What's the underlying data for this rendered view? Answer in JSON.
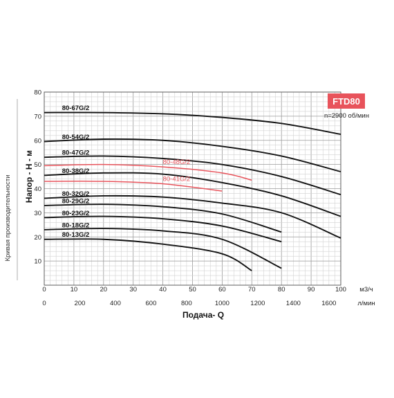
{
  "chart_data": {
    "type": "line",
    "model_label": "FTD80",
    "speed_note": "n=2900 об/мин",
    "side_label": "Кривая производительности",
    "ylabel": "Напор - Н - м",
    "xlabel": "Подача- Q",
    "x_unit_top": "м3/ч",
    "x_unit_bottom": "л/мин",
    "xlim": [
      0,
      100
    ],
    "ylim": [
      0,
      80
    ],
    "x_ticks": [
      "0",
      "10",
      "20",
      "30",
      "40",
      "50",
      "60",
      "70",
      "80",
      "90",
      "100"
    ],
    "y_ticks": [
      "10",
      "20",
      "30",
      "40",
      "50",
      "60",
      "70",
      "80"
    ],
    "lmin_ticks": [
      {
        "x": 0,
        "label": "0"
      },
      {
        "x": 12,
        "label": "200"
      },
      {
        "x": 24,
        "label": "400"
      },
      {
        "x": 36,
        "label": "600"
      },
      {
        "x": 48,
        "label": "800"
      },
      {
        "x": 60,
        "label": "1000"
      },
      {
        "x": 72,
        "label": "1200"
      },
      {
        "x": 84,
        "label": "1400"
      },
      {
        "x": 96,
        "label": "1600"
      }
    ],
    "colors": {
      "primary": "#111111",
      "highlight": "#e8535b",
      "badge": "#e8535b",
      "grid": "#bbbbbb"
    },
    "series": [
      {
        "name": "80-67G/2",
        "color": "primary",
        "x": [
          0,
          20,
          40,
          60,
          80,
          100
        ],
        "y": [
          71.5,
          71.5,
          71,
          69.5,
          67,
          62.5
        ]
      },
      {
        "name": "80-54G/2",
        "color": "primary",
        "x": [
          0,
          20,
          40,
          60,
          80,
          100
        ],
        "y": [
          59.5,
          60.5,
          60,
          57.5,
          53.5,
          47
        ]
      },
      {
        "name": "80-47G/2",
        "color": "primary",
        "x": [
          0,
          20,
          40,
          60,
          80,
          100
        ],
        "y": [
          53,
          53.5,
          52.5,
          50,
          45,
          37.5
        ]
      },
      {
        "name": "80-48G/2",
        "color": "highlight",
        "x": [
          0,
          20,
          40,
          60,
          70
        ],
        "y": [
          49.5,
          50,
          49,
          46.5,
          43.5
        ]
      },
      {
        "name": "80-38G/2",
        "color": "primary",
        "x": [
          0,
          20,
          40,
          60,
          80,
          100
        ],
        "y": [
          45.5,
          46.5,
          46,
          42.5,
          37,
          28.5
        ]
      },
      {
        "name": "80-41G/2",
        "color": "highlight",
        "x": [
          0,
          20,
          40,
          60
        ],
        "y": [
          43,
          43,
          42,
          39
        ]
      },
      {
        "name": "80-32G/2",
        "color": "primary",
        "x": [
          0,
          20,
          40,
          60,
          80,
          100
        ],
        "y": [
          36,
          37,
          36.5,
          34,
          30,
          19.5
        ]
      },
      {
        "name": "80-29G/2",
        "color": "primary",
        "x": [
          0,
          20,
          40,
          60,
          80
        ],
        "y": [
          33,
          33.5,
          32.5,
          29.5,
          22
        ]
      },
      {
        "name": "80-23G/2",
        "color": "primary",
        "x": [
          0,
          20,
          40,
          60,
          80
        ],
        "y": [
          28,
          28.5,
          27.5,
          24.5,
          18
        ]
      },
      {
        "name": "80-18G/2",
        "color": "primary",
        "x": [
          0,
          20,
          40,
          60,
          80
        ],
        "y": [
          23,
          23.5,
          22.5,
          19,
          7
        ]
      },
      {
        "name": "80-13G/2",
        "color": "primary",
        "x": [
          0,
          20,
          40,
          60,
          70
        ],
        "y": [
          19,
          19,
          17,
          13,
          6
        ]
      }
    ]
  }
}
